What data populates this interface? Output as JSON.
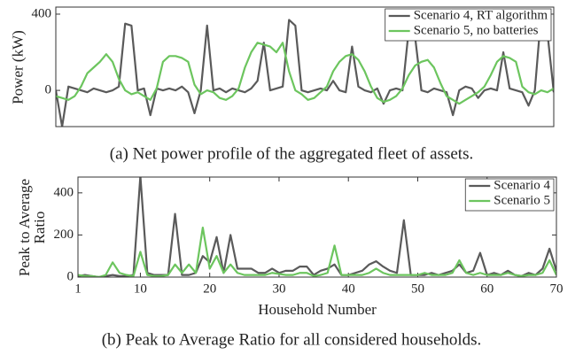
{
  "chart_data": [
    {
      "type": "line",
      "caption": "(a) Net power profile of the aggregated fleet of assets.",
      "ylabel": "Power (kW)",
      "x": [
        0,
        1,
        2,
        3,
        4,
        5,
        6,
        7,
        8,
        9,
        10,
        11,
        12,
        13,
        14,
        15,
        16,
        17,
        18,
        19,
        20,
        21,
        22,
        23,
        24,
        25,
        26,
        27,
        28,
        29,
        30,
        31,
        32,
        33,
        34,
        35,
        36,
        37,
        38,
        39,
        40,
        41,
        42,
        43,
        44,
        45,
        46,
        47,
        48,
        49,
        50,
        51,
        52,
        53,
        54,
        55,
        56,
        57,
        58,
        59,
        60,
        61,
        62,
        63,
        64,
        65,
        66,
        67,
        68,
        69,
        70,
        71,
        72,
        73,
        74,
        75,
        76,
        77,
        78,
        79
      ],
      "series": [
        {
          "name": "Scenario 4, RT algorithm",
          "color": "#5a5a5a",
          "values": [
            0,
            -190,
            20,
            10,
            0,
            -10,
            10,
            0,
            -10,
            0,
            20,
            350,
            340,
            0,
            10,
            -130,
            10,
            0,
            10,
            0,
            20,
            -10,
            -120,
            0,
            340,
            0,
            10,
            -10,
            10,
            0,
            -10,
            10,
            50,
            250,
            0,
            10,
            20,
            370,
            340,
            0,
            -10,
            0,
            10,
            0,
            50,
            0,
            -10,
            230,
            20,
            0,
            -10,
            10,
            -70,
            0,
            10,
            0,
            320,
            280,
            0,
            -10,
            10,
            0,
            -10,
            -130,
            0,
            20,
            10,
            -40,
            0,
            10,
            0,
            200,
            10,
            0,
            -10,
            -80,
            0,
            400,
            300,
            -10
          ]
        },
        {
          "name": "Scenario 5, no batteries",
          "color": "#6cc55e",
          "values": [
            -30,
            -40,
            -50,
            -30,
            20,
            90,
            120,
            150,
            190,
            150,
            60,
            0,
            -20,
            -10,
            -30,
            -50,
            10,
            150,
            180,
            180,
            170,
            150,
            30,
            -20,
            0,
            -10,
            -40,
            -50,
            -30,
            10,
            120,
            200,
            250,
            240,
            230,
            200,
            250,
            100,
            0,
            -20,
            -50,
            -40,
            -10,
            20,
            100,
            150,
            180,
            190,
            160,
            100,
            20,
            -40,
            -60,
            -50,
            -30,
            10,
            80,
            130,
            150,
            160,
            120,
            40,
            -30,
            -50,
            -70,
            -50,
            -30,
            -10,
            20,
            80,
            150,
            180,
            170,
            150,
            20,
            -10,
            -20,
            0,
            -10,
            10
          ]
        }
      ],
      "xlim": [
        0,
        79
      ],
      "ylim": [
        -190,
        437
      ],
      "yticks": [
        0,
        400
      ],
      "legend": "upper right"
    },
    {
      "type": "line",
      "caption": "(b) Peak to Average Ratio for all considered households.",
      "xlabel": "Household Number",
      "ylabel": "Peak to Average Ratio",
      "x": [
        1,
        2,
        3,
        4,
        5,
        6,
        7,
        8,
        9,
        10,
        11,
        12,
        13,
        14,
        15,
        16,
        17,
        18,
        19,
        20,
        21,
        22,
        23,
        24,
        25,
        26,
        27,
        28,
        29,
        30,
        31,
        32,
        33,
        34,
        35,
        36,
        37,
        38,
        39,
        40,
        41,
        42,
        43,
        44,
        45,
        46,
        47,
        48,
        49,
        50,
        51,
        52,
        53,
        54,
        55,
        56,
        57,
        58,
        59,
        60,
        61,
        62,
        63,
        64,
        65,
        66,
        67,
        68,
        69,
        70
      ],
      "series": [
        {
          "name": "Scenario 4",
          "color": "#5a5a5a",
          "values": [
            5,
            10,
            5,
            0,
            5,
            10,
            5,
            5,
            10,
            480,
            20,
            10,
            10,
            10,
            300,
            10,
            10,
            20,
            100,
            70,
            190,
            20,
            200,
            40,
            40,
            40,
            20,
            20,
            40,
            20,
            30,
            30,
            50,
            50,
            10,
            30,
            40,
            60,
            10,
            10,
            20,
            30,
            60,
            75,
            50,
            30,
            20,
            270,
            10,
            10,
            10,
            20,
            10,
            20,
            30,
            60,
            20,
            30,
            115,
            10,
            20,
            10,
            30,
            10,
            5,
            20,
            10,
            40,
            135,
            30
          ]
        },
        {
          "name": "Scenario 5",
          "color": "#6cc55e",
          "values": [
            10,
            5,
            5,
            0,
            10,
            70,
            20,
            10,
            5,
            120,
            10,
            5,
            5,
            10,
            60,
            20,
            60,
            20,
            235,
            40,
            100,
            20,
            60,
            20,
            10,
            10,
            10,
            10,
            20,
            15,
            10,
            10,
            20,
            20,
            5,
            10,
            20,
            150,
            10,
            10,
            10,
            10,
            20,
            40,
            20,
            10,
            10,
            10,
            10,
            10,
            20,
            10,
            10,
            10,
            20,
            80,
            20,
            10,
            20,
            10,
            10,
            10,
            20,
            10,
            5,
            10,
            10,
            20,
            80,
            10
          ]
        }
      ],
      "xlim": [
        1,
        70
      ],
      "ylim": [
        0,
        475
      ],
      "xticks": [
        1,
        10,
        20,
        30,
        40,
        50,
        60,
        70
      ],
      "yticks": [
        0,
        200,
        400
      ],
      "legend": "upper right"
    }
  ]
}
